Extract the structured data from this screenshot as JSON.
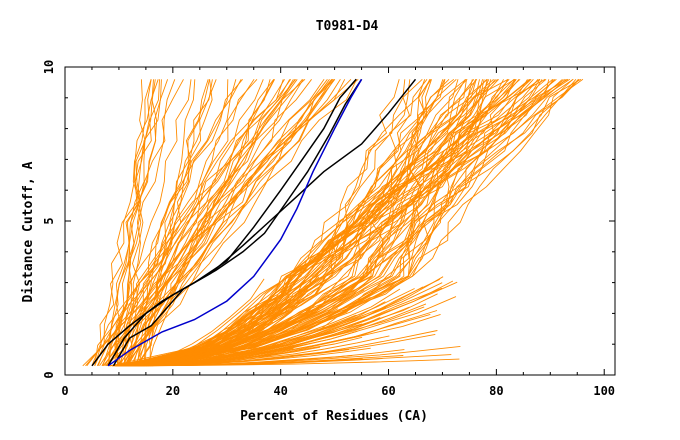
{
  "chart_data": {
    "type": "line",
    "title": "T0981-D4",
    "xlabel": "Percent of Residues (CA)",
    "ylabel": "Distance Cutoff, A",
    "xlim": [
      0,
      102
    ],
    "ylim": [
      0,
      10
    ],
    "xticks": [
      0,
      20,
      40,
      60,
      80,
      100
    ],
    "yticks": [
      0,
      5,
      10
    ],
    "grid": false,
    "colors": {
      "cluster": "#ff8c00",
      "highlight_black": "#000000",
      "highlight_blue": "#0000cc",
      "frame": "#000000"
    },
    "series": [
      {
        "group": "highlight_black",
        "x": [
          5,
          8,
          12,
          18,
          24,
          30,
          35,
          40,
          44,
          48,
          51,
          54
        ],
        "y": [
          0.3,
          1.0,
          1.6,
          2.4,
          3.0,
          3.7,
          4.8,
          6.0,
          7.0,
          8.0,
          9.0,
          9.6
        ]
      },
      {
        "group": "highlight_black",
        "x": [
          8,
          11,
          15,
          20,
          27,
          33,
          38,
          43,
          48,
          55,
          60,
          65
        ],
        "y": [
          0.3,
          1.2,
          2.0,
          2.6,
          3.3,
          4.2,
          5.0,
          5.8,
          6.6,
          7.5,
          8.5,
          9.6
        ]
      },
      {
        "group": "highlight_black",
        "x": [
          9,
          12,
          16,
          22,
          28,
          33,
          37,
          41,
          45,
          49,
          52,
          55
        ],
        "y": [
          0.3,
          1.2,
          1.6,
          2.8,
          3.4,
          4.0,
          4.6,
          5.6,
          6.6,
          7.8,
          8.8,
          9.6
        ]
      },
      {
        "group": "highlight_blue",
        "x": [
          8,
          12,
          18,
          24,
          30,
          35,
          40,
          43,
          46,
          50,
          53,
          55
        ],
        "y": [
          0.3,
          0.8,
          1.4,
          1.8,
          2.4,
          3.2,
          4.4,
          5.4,
          6.6,
          8.0,
          9.0,
          9.6
        ]
      }
    ]
  }
}
